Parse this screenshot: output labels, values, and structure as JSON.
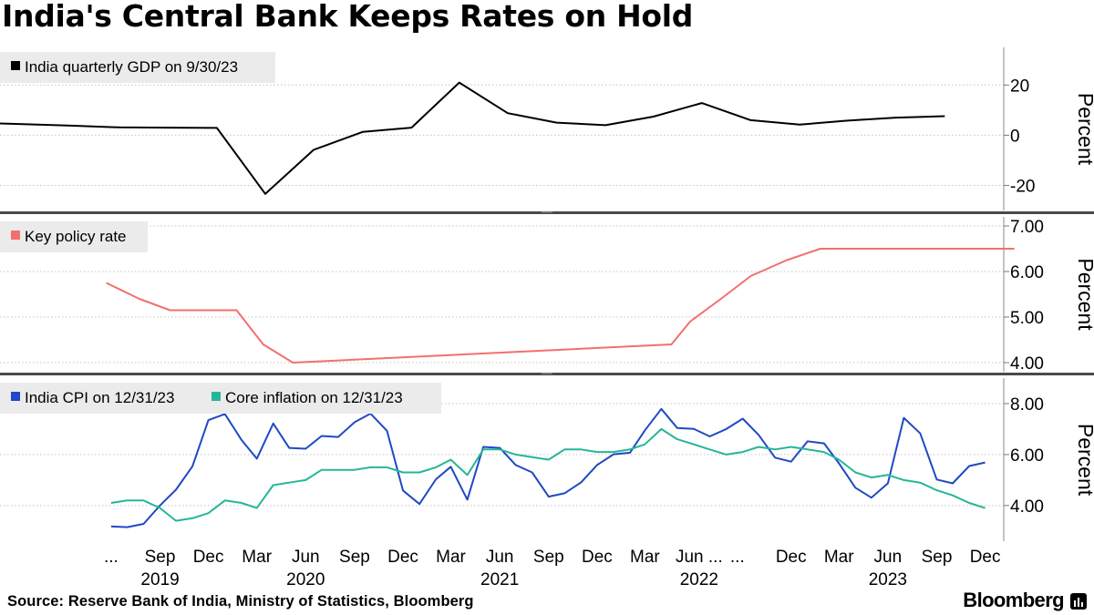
{
  "title": "India's Central Bank Keeps Rates on Hold",
  "footer": {
    "source": "Source: Reserve Bank of India, Ministry of Statistics, Bloomberg",
    "brand": "Bloomberg"
  },
  "chart_data": [
    {
      "type": "line",
      "panel": "gdp",
      "legend": "India quarterly GDP on 9/30/23",
      "ylabel": "Percent",
      "ylim": [
        -30,
        35
      ],
      "yticks": [
        20,
        0,
        -20
      ],
      "ytick_labels": [
        "20",
        "0",
        "-20"
      ],
      "x": [
        "2018-09-30",
        "2018-12-31",
        "2019-03-31",
        "2019-06-30",
        "2019-09-30",
        "2019-12-31",
        "2020-03-31",
        "2020-06-30",
        "2020-09-30",
        "2020-12-31",
        "2021-03-31",
        "2021-06-30",
        "2021-09-30",
        "2021-12-31",
        "2022-03-31",
        "2022-06-30",
        "2022-09-30",
        "2022-12-31",
        "2023-03-31",
        "2023-06-30",
        "2023-09-30"
      ],
      "series": [
        {
          "name": "India quarterly GDP",
          "color": "#000000",
          "values": [
            5.0,
            4.4,
            3.8,
            3.1,
            3.0,
            2.9,
            -23.4,
            -5.8,
            1.3,
            3.0,
            21.0,
            8.8,
            5.0,
            4.0,
            7.4,
            12.8,
            6.0,
            4.2,
            5.8,
            7.0,
            7.6
          ]
        }
      ]
    },
    {
      "type": "line",
      "panel": "policy",
      "legend": "Key policy rate",
      "ylabel": "Percent",
      "ylim": [
        3.8,
        7.2
      ],
      "yticks": [
        7,
        6,
        5,
        4
      ],
      "ytick_labels": [
        "7.00",
        "6.00",
        "5.00",
        "4.00"
      ],
      "x": [
        "2019-06-06",
        "2019-08-07",
        "2019-10-04",
        "2019-12-05",
        "2020-02-06",
        "2020-03-27",
        "2020-05-22",
        "2022-05-04",
        "2022-06-08",
        "2022-08-05",
        "2022-09-30",
        "2022-12-07",
        "2023-02-08",
        "2024-02-08"
      ],
      "series": [
        {
          "name": "Key policy rate",
          "color": "#f36f6f",
          "values": [
            5.75,
            5.4,
            5.15,
            5.15,
            5.15,
            4.4,
            4.0,
            4.4,
            4.9,
            5.4,
            5.9,
            6.25,
            6.5,
            6.5
          ]
        }
      ]
    },
    {
      "type": "line",
      "panel": "inflation",
      "ylabel": "Percent",
      "ylim": [
        2.6,
        9.0
      ],
      "yticks": [
        8,
        6,
        4
      ],
      "ytick_labels": [
        "8.00",
        "6.00",
        "4.00"
      ],
      "x": [
        "2019-06",
        "2019-07",
        "2019-08",
        "2019-09",
        "2019-10",
        "2019-11",
        "2019-12",
        "2020-01",
        "2020-02",
        "2020-03",
        "2020-04",
        "2020-05",
        "2020-06",
        "2020-07",
        "2020-08",
        "2020-09",
        "2020-10",
        "2020-11",
        "2020-12",
        "2021-01",
        "2021-02",
        "2021-03",
        "2021-04",
        "2021-05",
        "2021-06",
        "2021-07",
        "2021-08",
        "2021-09",
        "2021-10",
        "2021-11",
        "2021-12",
        "2022-01",
        "2022-02",
        "2022-03",
        "2022-04",
        "2022-05",
        "2022-06",
        "2022-07",
        "2022-08",
        "2022-09",
        "2022-10",
        "2022-11",
        "2022-12",
        "2023-01",
        "2023-02",
        "2023-03",
        "2023-04",
        "2023-05",
        "2023-06",
        "2023-07",
        "2023-08",
        "2023-09",
        "2023-10",
        "2023-11",
        "2023-12"
      ],
      "series": [
        {
          "name": "India CPI on 12/31/23",
          "color": "#1f49c6",
          "values": [
            3.18,
            3.15,
            3.28,
            4.0,
            4.62,
            5.54,
            7.35,
            7.59,
            6.58,
            5.84,
            7.22,
            6.26,
            6.23,
            6.73,
            6.69,
            7.27,
            7.61,
            6.93,
            4.59,
            4.06,
            5.03,
            5.52,
            4.23,
            6.3,
            6.26,
            5.59,
            5.3,
            4.35,
            4.48,
            4.91,
            5.59,
            6.01,
            6.07,
            6.95,
            7.79,
            7.04,
            7.01,
            6.71,
            7.0,
            7.41,
            6.77,
            5.88,
            5.72,
            6.52,
            6.44,
            5.66,
            4.7,
            4.31,
            4.87,
            7.44,
            6.83,
            5.02,
            4.87,
            5.55,
            5.69
          ]
        },
        {
          "name": "Core inflation on 12/31/23",
          "color": "#26b697",
          "values": [
            4.1,
            4.2,
            4.2,
            3.9,
            3.4,
            3.5,
            3.7,
            4.2,
            4.1,
            3.9,
            4.8,
            4.9,
            5.0,
            5.4,
            5.4,
            5.4,
            5.5,
            5.5,
            5.3,
            5.3,
            5.5,
            5.8,
            5.2,
            6.2,
            6.2,
            6.0,
            5.9,
            5.8,
            6.2,
            6.2,
            6.1,
            6.1,
            6.2,
            6.4,
            7.0,
            6.6,
            6.4,
            6.2,
            6.0,
            6.1,
            6.3,
            6.2,
            6.3,
            6.2,
            6.1,
            5.8,
            5.3,
            5.1,
            5.2,
            5.0,
            4.9,
            4.6,
            4.4,
            4.1,
            3.9
          ]
        }
      ]
    }
  ],
  "x_axis": {
    "ticks": [
      {
        "label": "...",
        "date": "2019-06-15"
      },
      {
        "label": "Sep",
        "date": "2019-09-15",
        "year": "2019"
      },
      {
        "label": "Dec",
        "date": "2019-12-15"
      },
      {
        "label": "Mar",
        "date": "2020-03-15"
      },
      {
        "label": "Jun",
        "date": "2020-06-15",
        "year": "2020"
      },
      {
        "label": "Sep",
        "date": "2020-09-15"
      },
      {
        "label": "Dec",
        "date": "2020-12-15"
      },
      {
        "label": "Mar",
        "date": "2021-03-15"
      },
      {
        "label": "Jun",
        "date": "2021-06-15",
        "year": "2021"
      },
      {
        "label": "Sep",
        "date": "2021-09-15"
      },
      {
        "label": "Dec",
        "date": "2021-12-15"
      },
      {
        "label": "Mar",
        "date": "2022-03-15"
      },
      {
        "label": "Jun ...",
        "date": "2022-06-25",
        "year": "2022"
      },
      {
        "label": "...",
        "date": "2022-09-05"
      },
      {
        "label": "Dec",
        "date": "2022-12-15"
      },
      {
        "label": "Mar",
        "date": "2023-03-15"
      },
      {
        "label": "Jun",
        "date": "2023-06-15",
        "year": "2023"
      },
      {
        "label": "Sep",
        "date": "2023-09-15"
      },
      {
        "label": "Dec",
        "date": "2023-12-15"
      }
    ]
  }
}
